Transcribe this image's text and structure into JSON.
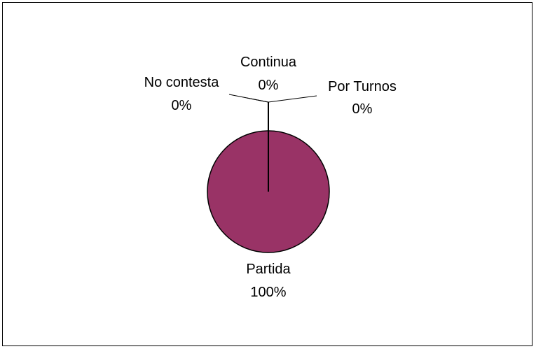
{
  "chart_data": {
    "type": "pie",
    "categories": [
      "Partida",
      "Por Turnos",
      "Continua",
      "No contesta"
    ],
    "values": [
      100,
      0,
      0,
      0
    ],
    "data_labels": [
      {
        "name": "Partida",
        "percent": "100%"
      },
      {
        "name": "Por Turnos",
        "percent": "0%"
      },
      {
        "name": "Continua",
        "percent": "0%"
      },
      {
        "name": "No contesta",
        "percent": "0%"
      }
    ],
    "colors": [
      "#993366",
      "#9999ff",
      "#ffffcc",
      "#ccffff"
    ],
    "outline_color": "#000000",
    "title": "",
    "legend": "none"
  }
}
